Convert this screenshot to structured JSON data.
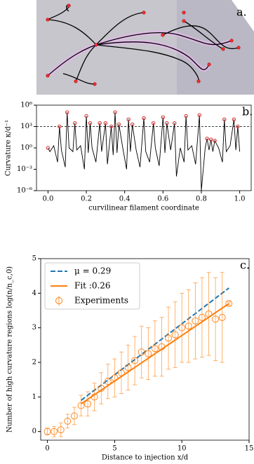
{
  "panel_a": {
    "label": "a."
  },
  "chart_data": [
    {
      "type": "line",
      "panel_label": "b.",
      "ylabel": "Curvature κ/d⁻¹",
      "xlabel": "curvilinear filament coordinate",
      "xlim": [
        -0.06,
        1.06
      ],
      "xticks": [
        {
          "value": 0,
          "label": "0.0"
        },
        0.2,
        0.4,
        0.6,
        0.8,
        {
          "value": 1,
          "label": "1.0"
        }
      ],
      "ylim": [
        1e-06,
        1000000
      ],
      "log_y": true,
      "yticks": [
        {
          "value": 1e-06,
          "label": "10⁻⁶"
        },
        {
          "value": 0.001,
          "label": "10⁻³"
        },
        {
          "value": 1,
          "label": "10⁰"
        },
        {
          "value": 1000,
          "label": "10³"
        },
        {
          "value": 1000000,
          "label": "10⁶"
        }
      ],
      "hline": {
        "value": 1000,
        "color": "#000000",
        "style": "dashed"
      },
      "series": [
        {
          "color": "#000000",
          "x": [
            0,
            0.01,
            0.03,
            0.05,
            0.06,
            0.07,
            0.09,
            0.1,
            0.11,
            0.13,
            0.14,
            0.15,
            0.17,
            0.19,
            0.2,
            0.21,
            0.22,
            0.23,
            0.25,
            0.27,
            0.28,
            0.3,
            0.31,
            0.33,
            0.34,
            0.35,
            0.36,
            0.37,
            0.39,
            0.41,
            0.42,
            0.43,
            0.44,
            0.46,
            0.48,
            0.5,
            0.51,
            0.53,
            0.55,
            0.56,
            0.58,
            0.6,
            0.61,
            0.62,
            0.64,
            0.66,
            0.67,
            0.69,
            0.71,
            0.72,
            0.73,
            0.75,
            0.77,
            0.79,
            0.8,
            0.82,
            0.83,
            0.84,
            0.85,
            0.86,
            0.87,
            0.89,
            0.91,
            0.92,
            0.93,
            0.95,
            0.97,
            0.98,
            0.99,
            1.0
          ],
          "values": [
            1,
            0.3,
            2,
            0.01,
            1000,
            0.5,
            0.002,
            100000,
            1,
            0.3,
            3000,
            0.5,
            2,
            0.001,
            30000,
            0.2,
            3000,
            1,
            0.01,
            3000,
            0.3,
            3000,
            0.005,
            1000,
            0.1,
            100000,
            0.2,
            2000,
            1,
            0.001,
            10000,
            0.3,
            2000,
            0.5,
            0.002,
            15000,
            0.3,
            0.01,
            3000,
            1,
            0.003,
            20000,
            0.2,
            3000,
            0.5,
            3000,
            0.0001,
            1,
            0.01,
            30000,
            0.5,
            2,
            0.005,
            40000,
            1e-06,
            1,
            20,
            0.5,
            15,
            0.3,
            10,
            1,
            0.01,
            10000,
            0.3,
            2,
            10000,
            0.5,
            1000,
            0.3
          ]
        }
      ],
      "peaks": {
        "color": "#d62728",
        "x": [
          0,
          0.06,
          0.1,
          0.14,
          0.2,
          0.22,
          0.27,
          0.3,
          0.33,
          0.35,
          0.37,
          0.42,
          0.44,
          0.5,
          0.55,
          0.6,
          0.62,
          0.66,
          0.72,
          0.79,
          0.83,
          0.85,
          0.87,
          0.92,
          0.97,
          0.99
        ],
        "values": [
          1,
          1000,
          100000,
          3000,
          30000,
          3000,
          3000,
          3000,
          1000,
          100000,
          2000,
          10000,
          2000,
          15000,
          3000,
          20000,
          3000,
          3000,
          30000,
          40000,
          20,
          15,
          10,
          10000,
          10000,
          1000
        ]
      }
    },
    {
      "type": "errorbar",
      "panel_label": "c.",
      "ylabel": "Number of high curvature regions log(n/n_c,0)",
      "xlabel": "Distance to injection x/d",
      "xlim": [
        -0.5,
        15
      ],
      "xticks": [
        0,
        5,
        10,
        15
      ],
      "ylim": [
        -0.25,
        5
      ],
      "yticks": [
        0,
        1,
        2,
        3,
        4,
        5
      ],
      "series": [
        {
          "name": "μ = 0.29",
          "color": "#1f77b4",
          "style": "dashed",
          "x": [
            2.5,
            13.5
          ],
          "values": [
            0.9,
            4.15
          ]
        },
        {
          "name": "Fit :0.26",
          "color": "#ff7f0e",
          "style": "solid",
          "x": [
            2.5,
            13.5
          ],
          "values": [
            0.8,
            3.7
          ]
        },
        {
          "name": "Experiments",
          "color": "#ff7f0e",
          "style": "errorbar",
          "x": [
            0,
            0.5,
            1,
            1.5,
            2,
            2.5,
            3,
            3.5,
            4,
            4.5,
            5,
            5.5,
            6,
            6.5,
            7,
            7.5,
            8,
            8.5,
            9,
            9.5,
            10,
            10.5,
            11,
            11.5,
            12,
            12.5,
            13,
            13.5
          ],
          "values": [
            0,
            0,
            0.05,
            0.3,
            0.45,
            0.75,
            0.8,
            1.0,
            1.25,
            1.45,
            1.55,
            1.7,
            1.85,
            2.05,
            2.3,
            2.25,
            2.4,
            2.45,
            2.7,
            2.8,
            3.0,
            3.05,
            3.2,
            3.3,
            3.4,
            3.25,
            3.3,
            3.7
          ],
          "errors": [
            0.1,
            0.15,
            0.2,
            0.2,
            0.25,
            0.3,
            0.35,
            0.4,
            0.45,
            0.5,
            0.55,
            0.6,
            0.65,
            0.7,
            0.75,
            0.75,
            0.8,
            0.85,
            0.9,
            0.95,
            1.0,
            1.05,
            1.1,
            1.15,
            1.2,
            1.2,
            1.3,
            0.05
          ]
        }
      ]
    }
  ]
}
